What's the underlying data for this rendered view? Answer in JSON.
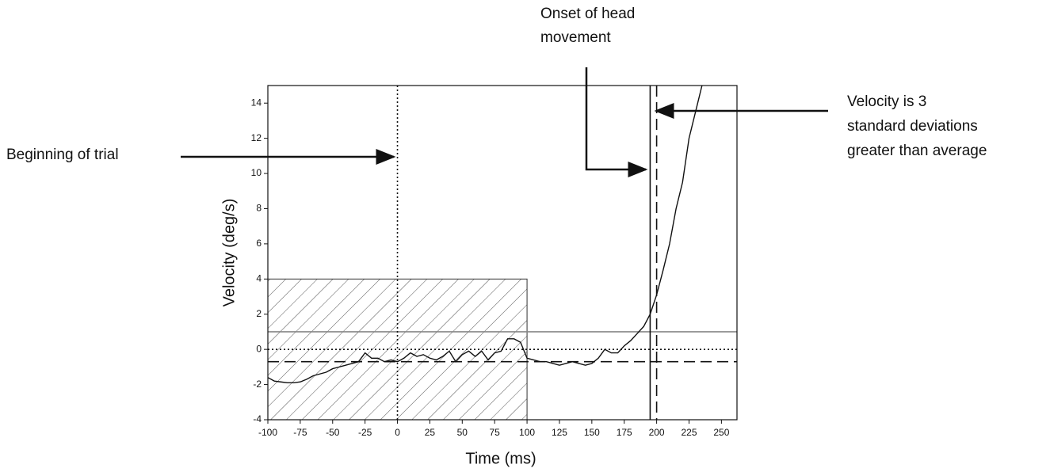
{
  "chart_data": {
    "type": "line",
    "xlabel": "Time (ms)",
    "ylabel": "Velocity (deg/s)",
    "xlim": [
      -100,
      262
    ],
    "ylim": [
      -4,
      15
    ],
    "xticks": [
      -100,
      -75,
      -50,
      -25,
      0,
      25,
      50,
      75,
      100,
      125,
      150,
      175,
      200,
      225,
      250
    ],
    "yticks": [
      -4,
      -2,
      0,
      2,
      4,
      6,
      8,
      10,
      12,
      14
    ],
    "x": [
      -100,
      -95,
      -90,
      -85,
      -80,
      -75,
      -70,
      -65,
      -60,
      -55,
      -50,
      -45,
      -40,
      -35,
      -30,
      -25,
      -20,
      -15,
      -10,
      -5,
      0,
      5,
      10,
      15,
      20,
      25,
      30,
      35,
      40,
      45,
      50,
      55,
      60,
      65,
      70,
      75,
      80,
      85,
      90,
      95,
      100,
      105,
      110,
      115,
      120,
      125,
      130,
      135,
      140,
      145,
      150,
      155,
      160,
      165,
      170,
      175,
      180,
      185,
      190,
      195,
      200,
      205,
      210,
      215,
      220,
      225,
      230,
      235
    ],
    "series": [
      {
        "color": "#111111",
        "values": [
          -1.6,
          -1.8,
          -1.85,
          -1.9,
          -1.9,
          -1.85,
          -1.7,
          -1.5,
          -1.4,
          -1.3,
          -1.1,
          -1.0,
          -0.9,
          -0.8,
          -0.7,
          -0.2,
          -0.5,
          -0.5,
          -0.7,
          -0.6,
          -0.7,
          -0.5,
          -0.2,
          -0.4,
          -0.3,
          -0.5,
          -0.6,
          -0.4,
          -0.1,
          -0.7,
          -0.3,
          -0.1,
          -0.4,
          -0.1,
          -0.6,
          -0.2,
          -0.1,
          0.6,
          0.6,
          0.4,
          -0.5,
          -0.6,
          -0.7,
          -0.7,
          -0.8,
          -0.9,
          -0.8,
          -0.7,
          -0.8,
          -0.9,
          -0.8,
          -0.5,
          0.0,
          -0.2,
          -0.2,
          0.2,
          0.5,
          0.9,
          1.3,
          2.0,
          3.1,
          4.5,
          6.0,
          8.0,
          9.5,
          12.0,
          13.5,
          15.0
        ]
      }
    ],
    "shaded_region": {
      "x": [
        -100,
        100
      ],
      "y": [
        -4,
        4
      ]
    },
    "hlines": [
      {
        "y": 1,
        "style": "solid",
        "color": "#888888"
      },
      {
        "y": 0,
        "style": "dotted",
        "color": "#111111"
      },
      {
        "y": -0.7,
        "style": "dashed",
        "color": "#111111"
      }
    ],
    "vlines": [
      {
        "x": 0,
        "style": "dotted",
        "color": "#111111"
      },
      {
        "x": 195,
        "style": "solid",
        "color": "#111111"
      },
      {
        "x": 200,
        "style": "dashed",
        "color": "#111111"
      }
    ],
    "annotations": [
      {
        "lines": [
          "Beginning of trial"
        ]
      },
      {
        "lines": [
          "Onset of head",
          "movement"
        ]
      },
      {
        "lines": [
          "Velocity is 3",
          "standard deviations",
          "greater than average"
        ]
      }
    ]
  }
}
